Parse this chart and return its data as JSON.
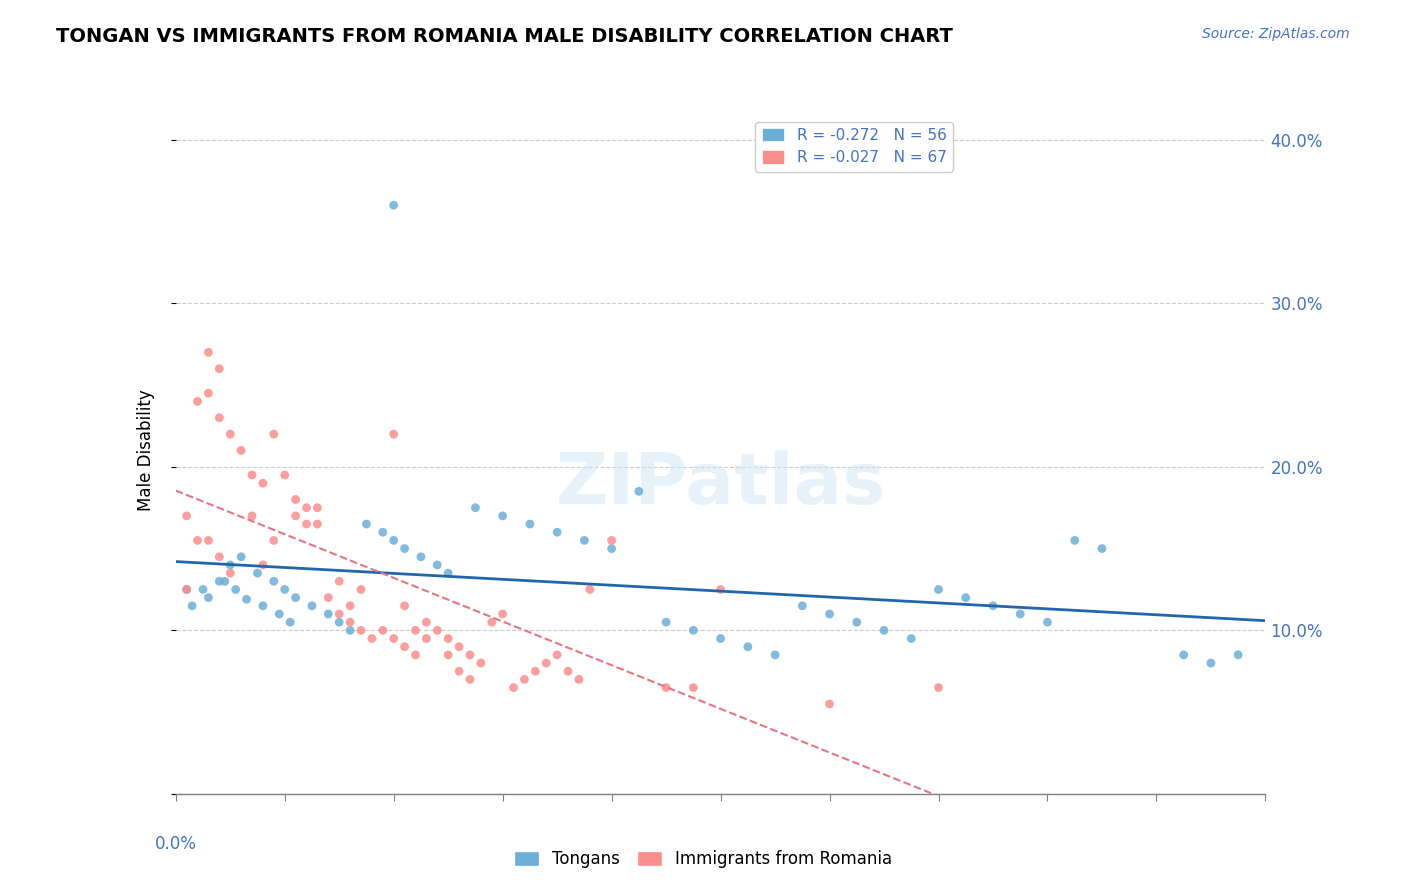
{
  "title": "TONGAN VS IMMIGRANTS FROM ROMANIA MALE DISABILITY CORRELATION CHART",
  "source": "Source: ZipAtlas.com",
  "ylabel": "Male Disability",
  "xlim": [
    0.0,
    0.2
  ],
  "ylim": [
    0.0,
    0.42
  ],
  "legend_blue_label": "R = -0.272   N = 56",
  "legend_pink_label": "R = -0.027   N = 67",
  "blue_color": "#6baed6",
  "pink_color": "#fc8d8d",
  "trend_blue_color": "#2166ac",
  "trend_pink_color": "#e87582",
  "watermark": "ZIPatlas",
  "blue_scatter": [
    [
      0.005,
      0.125
    ],
    [
      0.008,
      0.13
    ],
    [
      0.01,
      0.14
    ],
    [
      0.012,
      0.145
    ],
    [
      0.015,
      0.135
    ],
    [
      0.018,
      0.13
    ],
    [
      0.02,
      0.125
    ],
    [
      0.022,
      0.12
    ],
    [
      0.025,
      0.115
    ],
    [
      0.028,
      0.11
    ],
    [
      0.03,
      0.105
    ],
    [
      0.032,
      0.1
    ],
    [
      0.035,
      0.165
    ],
    [
      0.038,
      0.16
    ],
    [
      0.04,
      0.155
    ],
    [
      0.042,
      0.15
    ],
    [
      0.045,
      0.145
    ],
    [
      0.048,
      0.14
    ],
    [
      0.05,
      0.135
    ],
    [
      0.055,
      0.175
    ],
    [
      0.06,
      0.17
    ],
    [
      0.065,
      0.165
    ],
    [
      0.07,
      0.16
    ],
    [
      0.075,
      0.155
    ],
    [
      0.08,
      0.15
    ],
    [
      0.085,
      0.185
    ],
    [
      0.09,
      0.105
    ],
    [
      0.095,
      0.1
    ],
    [
      0.1,
      0.095
    ],
    [
      0.105,
      0.09
    ],
    [
      0.11,
      0.085
    ],
    [
      0.115,
      0.115
    ],
    [
      0.12,
      0.11
    ],
    [
      0.125,
      0.105
    ],
    [
      0.13,
      0.1
    ],
    [
      0.135,
      0.095
    ],
    [
      0.14,
      0.125
    ],
    [
      0.145,
      0.12
    ],
    [
      0.15,
      0.115
    ],
    [
      0.155,
      0.11
    ],
    [
      0.16,
      0.105
    ],
    [
      0.165,
      0.155
    ],
    [
      0.17,
      0.15
    ],
    [
      0.185,
      0.085
    ],
    [
      0.19,
      0.08
    ],
    [
      0.195,
      0.085
    ],
    [
      0.04,
      0.36
    ],
    [
      0.002,
      0.125
    ],
    [
      0.003,
      0.115
    ],
    [
      0.006,
      0.12
    ],
    [
      0.009,
      0.13
    ],
    [
      0.011,
      0.125
    ],
    [
      0.013,
      0.119
    ],
    [
      0.016,
      0.115
    ],
    [
      0.019,
      0.11
    ],
    [
      0.021,
      0.105
    ]
  ],
  "pink_scatter": [
    [
      0.002,
      0.125
    ],
    [
      0.004,
      0.24
    ],
    [
      0.006,
      0.245
    ],
    [
      0.008,
      0.23
    ],
    [
      0.01,
      0.22
    ],
    [
      0.012,
      0.21
    ],
    [
      0.014,
      0.195
    ],
    [
      0.016,
      0.19
    ],
    [
      0.018,
      0.22
    ],
    [
      0.02,
      0.195
    ],
    [
      0.022,
      0.18
    ],
    [
      0.024,
      0.175
    ],
    [
      0.026,
      0.165
    ],
    [
      0.028,
      0.12
    ],
    [
      0.03,
      0.11
    ],
    [
      0.032,
      0.105
    ],
    [
      0.034,
      0.1
    ],
    [
      0.036,
      0.095
    ],
    [
      0.038,
      0.1
    ],
    [
      0.04,
      0.095
    ],
    [
      0.042,
      0.09
    ],
    [
      0.044,
      0.085
    ],
    [
      0.046,
      0.105
    ],
    [
      0.048,
      0.1
    ],
    [
      0.05,
      0.095
    ],
    [
      0.052,
      0.09
    ],
    [
      0.054,
      0.085
    ],
    [
      0.056,
      0.08
    ],
    [
      0.058,
      0.105
    ],
    [
      0.06,
      0.11
    ],
    [
      0.062,
      0.065
    ],
    [
      0.064,
      0.07
    ],
    [
      0.066,
      0.075
    ],
    [
      0.068,
      0.08
    ],
    [
      0.07,
      0.085
    ],
    [
      0.072,
      0.075
    ],
    [
      0.074,
      0.07
    ],
    [
      0.076,
      0.125
    ],
    [
      0.008,
      0.26
    ],
    [
      0.006,
      0.27
    ],
    [
      0.01,
      0.135
    ],
    [
      0.014,
      0.17
    ],
    [
      0.018,
      0.155
    ],
    [
      0.016,
      0.14
    ],
    [
      0.022,
      0.17
    ],
    [
      0.024,
      0.165
    ],
    [
      0.026,
      0.175
    ],
    [
      0.03,
      0.13
    ],
    [
      0.032,
      0.115
    ],
    [
      0.034,
      0.125
    ],
    [
      0.04,
      0.22
    ],
    [
      0.042,
      0.115
    ],
    [
      0.044,
      0.1
    ],
    [
      0.046,
      0.095
    ],
    [
      0.05,
      0.085
    ],
    [
      0.052,
      0.075
    ],
    [
      0.054,
      0.07
    ],
    [
      0.08,
      0.155
    ],
    [
      0.09,
      0.065
    ],
    [
      0.095,
      0.065
    ],
    [
      0.1,
      0.125
    ],
    [
      0.12,
      0.055
    ],
    [
      0.14,
      0.065
    ],
    [
      0.002,
      0.17
    ],
    [
      0.004,
      0.155
    ],
    [
      0.006,
      0.155
    ],
    [
      0.008,
      0.145
    ]
  ]
}
